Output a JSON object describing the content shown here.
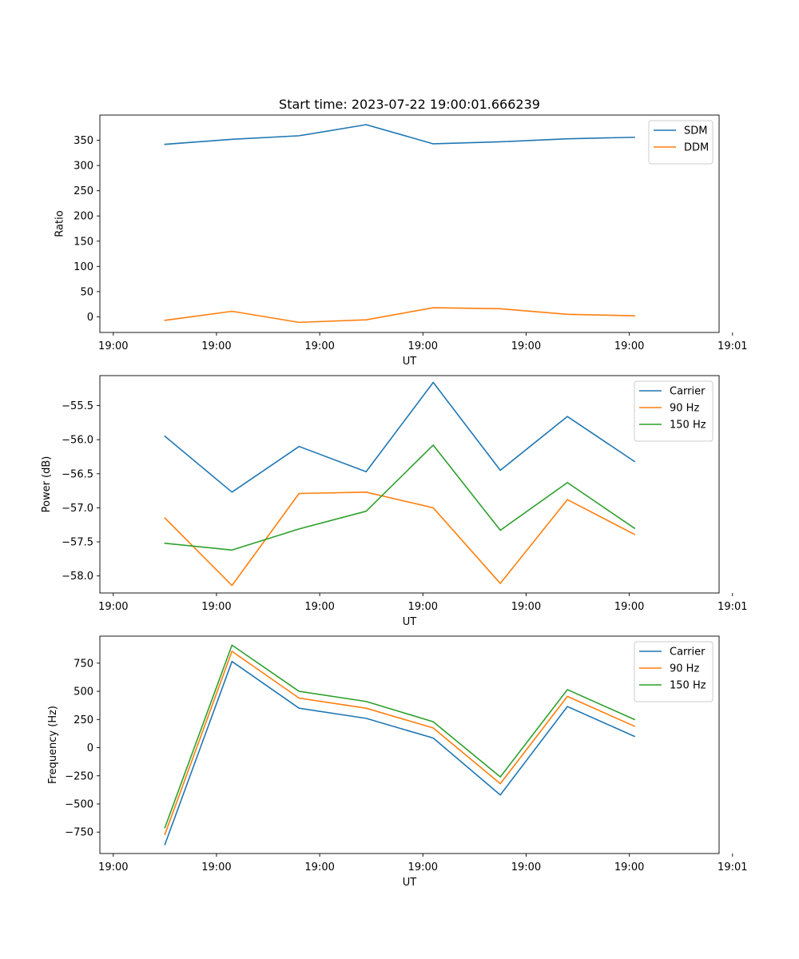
{
  "chart_data": [
    {
      "type": "line",
      "title": "Start time: 2023-07-22 19:00:01.666239",
      "xlabel": "UT",
      "ylabel": "Ratio",
      "x": [
        0.5,
        1.15,
        1.8,
        2.45,
        3.1,
        3.75,
        4.4,
        5.05
      ],
      "xlim": [
        -0.13,
        5.87
      ],
      "xticks": [
        0,
        1,
        2,
        3,
        4,
        5,
        6
      ],
      "xticklabels": [
        "19:00",
        "19:00",
        "19:00",
        "19:00",
        "19:00",
        "19:00",
        "19:01"
      ],
      "ylim": [
        -31,
        400
      ],
      "yticks": [
        0,
        50,
        100,
        150,
        200,
        250,
        300,
        350
      ],
      "yticklabels": [
        "0",
        "50",
        "100",
        "150",
        "200",
        "250",
        "300",
        "350"
      ],
      "legend": "upper right",
      "series": [
        {
          "name": "SDM",
          "color": "#1f77b4",
          "values": [
            342,
            352,
            359,
            381,
            343,
            347,
            353,
            356
          ]
        },
        {
          "name": "DDM",
          "color": "#ff7f0e",
          "values": [
            -7,
            11,
            -11,
            -6,
            18,
            16,
            5,
            2
          ]
        }
      ]
    },
    {
      "type": "line",
      "title": "",
      "xlabel": "UT",
      "ylabel": "Power (dB)",
      "x": [
        0.5,
        1.15,
        1.8,
        2.45,
        3.1,
        3.75,
        4.4,
        5.05
      ],
      "xlim": [
        -0.13,
        5.87
      ],
      "xticks": [
        0,
        1,
        2,
        3,
        4,
        5,
        6
      ],
      "xticklabels": [
        "19:00",
        "19:00",
        "19:00",
        "19:00",
        "19:00",
        "19:00",
        "19:01"
      ],
      "ylim": [
        -58.25,
        -55.06
      ],
      "yticks": [
        -58.0,
        -57.5,
        -57.0,
        -56.5,
        -56.0,
        -55.5
      ],
      "yticklabels": [
        "−58.0",
        "−57.5",
        "−57.0",
        "−56.5",
        "−56.0",
        "−55.5"
      ],
      "legend": "upper right",
      "series": [
        {
          "name": "Carrier",
          "color": "#1f77b4",
          "values": [
            -55.95,
            -56.77,
            -56.1,
            -56.47,
            -55.16,
            -56.45,
            -55.66,
            -56.32
          ]
        },
        {
          "name": "90 Hz",
          "color": "#ff7f0e",
          "values": [
            -57.15,
            -58.14,
            -56.79,
            -56.77,
            -57.0,
            -58.11,
            -56.88,
            -57.39
          ]
        },
        {
          "name": "150 Hz",
          "color": "#2ca02c",
          "values": [
            -57.52,
            -57.62,
            -57.31,
            -57.05,
            -56.08,
            -57.33,
            -56.63,
            -57.3
          ]
        }
      ]
    },
    {
      "type": "line",
      "title": "",
      "xlabel": "UT",
      "ylabel": "Frequency (Hz)",
      "x": [
        0.5,
        1.15,
        1.8,
        2.45,
        3.1,
        3.75,
        4.4,
        5.05
      ],
      "xlim": [
        -0.13,
        5.87
      ],
      "xticks": [
        0,
        1,
        2,
        3,
        4,
        5,
        6
      ],
      "xticklabels": [
        "19:00",
        "19:00",
        "19:00",
        "19:00",
        "19:00",
        "19:00",
        "19:01"
      ],
      "ylim": [
        -940,
        990
      ],
      "yticks": [
        -750,
        -500,
        -250,
        0,
        250,
        500,
        750
      ],
      "yticklabels": [
        "−750",
        "−500",
        "−250",
        "0",
        "250",
        "500",
        "750"
      ],
      "legend": "upper right",
      "series": [
        {
          "name": "Carrier",
          "color": "#1f77b4",
          "values": [
            -860,
            765,
            350,
            260,
            85,
            -420,
            365,
            100
          ]
        },
        {
          "name": "90 Hz",
          "color": "#ff7f0e",
          "values": [
            -770,
            855,
            440,
            350,
            175,
            -320,
            455,
            190
          ]
        },
        {
          "name": "150 Hz",
          "color": "#2ca02c",
          "values": [
            -710,
            910,
            500,
            410,
            230,
            -260,
            515,
            250
          ]
        }
      ]
    }
  ]
}
